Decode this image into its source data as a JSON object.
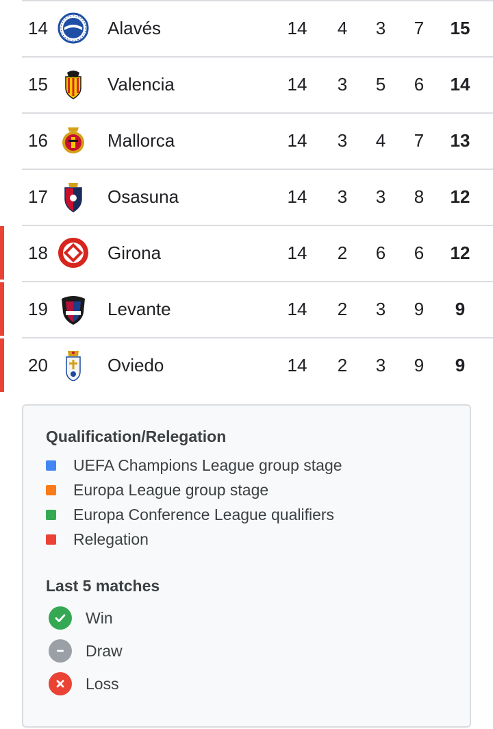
{
  "standings": {
    "rows": [
      {
        "position": "14",
        "team": "Alavés",
        "crest": "alaves-crest-icon",
        "played": "14",
        "won": "4",
        "drawn": "3",
        "lost": "7",
        "points": "15",
        "zone": null
      },
      {
        "position": "15",
        "team": "Valencia",
        "crest": "valencia-crest-icon",
        "played": "14",
        "won": "3",
        "drawn": "5",
        "lost": "6",
        "points": "14",
        "zone": null
      },
      {
        "position": "16",
        "team": "Mallorca",
        "crest": "mallorca-crest-icon",
        "played": "14",
        "won": "3",
        "drawn": "4",
        "lost": "7",
        "points": "13",
        "zone": null
      },
      {
        "position": "17",
        "team": "Osasuna",
        "crest": "osasuna-crest-icon",
        "played": "14",
        "won": "3",
        "drawn": "3",
        "lost": "8",
        "points": "12",
        "zone": null
      },
      {
        "position": "18",
        "team": "Girona",
        "crest": "girona-crest-icon",
        "played": "14",
        "won": "2",
        "drawn": "6",
        "lost": "6",
        "points": "12",
        "zone": "relegation"
      },
      {
        "position": "19",
        "team": "Levante",
        "crest": "levante-crest-icon",
        "played": "14",
        "won": "2",
        "drawn": "3",
        "lost": "9",
        "points": "9",
        "zone": "relegation"
      },
      {
        "position": "20",
        "team": "Oviedo",
        "crest": "oviedo-crest-icon",
        "played": "14",
        "won": "2",
        "drawn": "3",
        "lost": "9",
        "points": "9",
        "zone": "relegation"
      }
    ]
  },
  "legend": {
    "qualification_title": "Qualification/Relegation",
    "qualification_items": [
      {
        "label": "UEFA Champions League group stage",
        "color": "#4285f4"
      },
      {
        "label": "Europa League group stage",
        "color": "#fa7b17"
      },
      {
        "label": "Europa Conference League qualifiers",
        "color": "#34a853"
      },
      {
        "label": "Relegation",
        "color": "#ea4335"
      }
    ],
    "matches_title": "Last 5 matches",
    "match_items": [
      {
        "label": "Win",
        "icon": "check-icon",
        "color": "#34a853"
      },
      {
        "label": "Draw",
        "icon": "minus-icon",
        "color": "#9aa0a6"
      },
      {
        "label": "Loss",
        "icon": "close-icon",
        "color": "#ea4335"
      }
    ]
  },
  "colors": {
    "relegation": "#ea4335",
    "divider": "#dadce0"
  }
}
